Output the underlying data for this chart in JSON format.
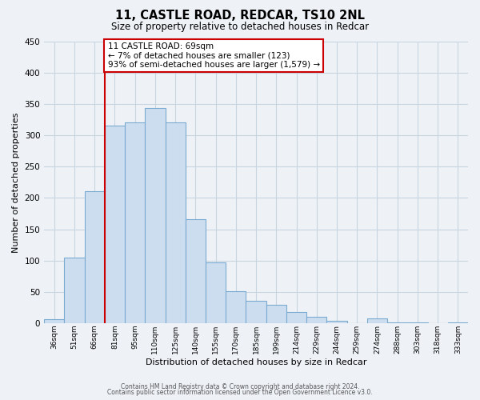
{
  "title": "11, CASTLE ROAD, REDCAR, TS10 2NL",
  "subtitle": "Size of property relative to detached houses in Redcar",
  "xlabel": "Distribution of detached houses by size in Redcar",
  "ylabel": "Number of detached properties",
  "categories": [
    "36sqm",
    "51sqm",
    "66sqm",
    "81sqm",
    "95sqm",
    "110sqm",
    "125sqm",
    "140sqm",
    "155sqm",
    "170sqm",
    "185sqm",
    "199sqm",
    "214sqm",
    "229sqm",
    "244sqm",
    "259sqm",
    "274sqm",
    "288sqm",
    "303sqm",
    "318sqm",
    "333sqm"
  ],
  "values": [
    7,
    105,
    211,
    315,
    320,
    344,
    320,
    166,
    97,
    51,
    36,
    30,
    18,
    10,
    4,
    0,
    8,
    2,
    1,
    0,
    2
  ],
  "bar_color": "#ccddf0",
  "bar_edge_color": "#7aaad0",
  "vline_idx": 2,
  "vline_color": "#cc0000",
  "annotation_title": "11 CASTLE ROAD: 69sqm",
  "annotation_line1": "← 7% of detached houses are smaller (123)",
  "annotation_line2": "93% of semi-detached houses are larger (1,579) →",
  "annotation_box_facecolor": "#ffffff",
  "annotation_box_edgecolor": "#cc0000",
  "ylim": [
    0,
    450
  ],
  "yticks": [
    0,
    50,
    100,
    150,
    200,
    250,
    300,
    350,
    400,
    450
  ],
  "footer1": "Contains HM Land Registry data © Crown copyright and database right 2024.",
  "footer2": "Contains public sector information licensed under the Open Government Licence v3.0.",
  "background_color": "#eef2f7",
  "grid_color": "#c8d4e0"
}
